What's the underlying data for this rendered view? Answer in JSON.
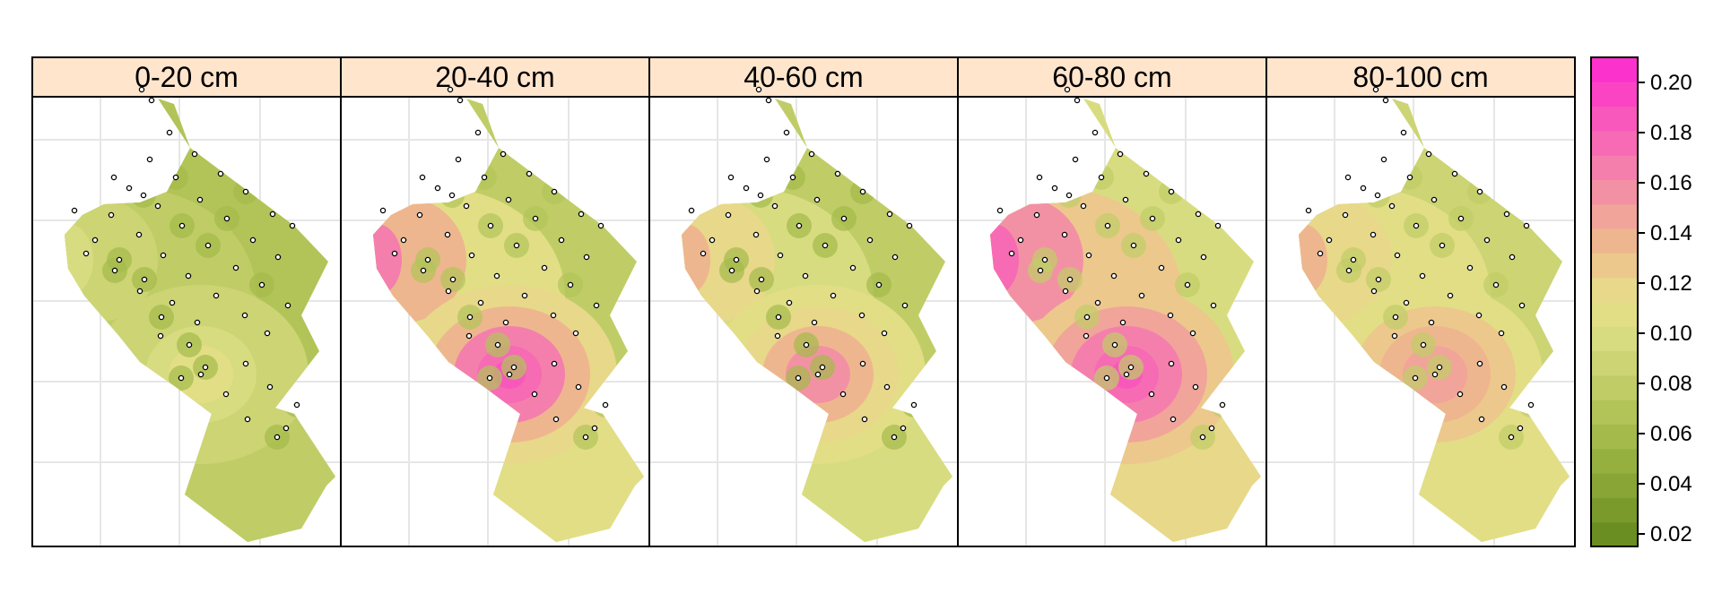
{
  "chart_data": {
    "type": "heatmap",
    "title": "",
    "xlabel": "",
    "ylabel": "",
    "panels": [
      {
        "label": "0-20 cm",
        "hotspot_level": 0.11,
        "base_level": 0.07,
        "corner_level": 0.09
      },
      {
        "label": "20-40 cm",
        "hotspot_level": 0.19,
        "base_level": 0.08,
        "corner_level": 0.14
      },
      {
        "label": "40-60 cm",
        "hotspot_level": 0.16,
        "base_level": 0.075,
        "corner_level": 0.12
      },
      {
        "label": "60-80 cm",
        "hotspot_level": 0.19,
        "base_level": 0.095,
        "corner_level": 0.16
      },
      {
        "label": "80-100 cm",
        "hotspot_level": 0.15,
        "base_level": 0.09,
        "corner_level": 0.12
      }
    ],
    "colorkey": {
      "min": 0.015,
      "max": 0.21,
      "ticks": [
        0.02,
        0.04,
        0.06,
        0.08,
        0.1,
        0.12,
        0.14,
        0.16,
        0.18,
        0.2
      ],
      "tick_labels": [
        "0.02",
        "0.04",
        "0.06",
        "0.08",
        "0.10",
        "0.12",
        "0.14",
        "0.16",
        "0.18",
        "0.20"
      ],
      "colors": [
        "#6b8e23",
        "#7a9a2c",
        "#88a536",
        "#96b040",
        "#a4ba4a",
        "#b2c458",
        "#c0cd67",
        "#ccd474",
        "#d8dc80",
        "#e2de86",
        "#e8d88a",
        "#ecc88c",
        "#eeb68e",
        "#f1a49a",
        "#f391a4",
        "#f47fac",
        "#f66bb4",
        "#f858bc",
        "#fa44c4",
        "#fc32cc"
      ]
    },
    "grid": true,
    "legend_position": "right",
    "sample_points": [
      [
        122,
        100
      ],
      [
        133,
        112
      ],
      [
        153,
        148
      ],
      [
        131,
        178
      ],
      [
        181,
        172
      ],
      [
        210,
        194
      ],
      [
        160,
        198
      ],
      [
        91,
        198
      ],
      [
        108,
        210
      ],
      [
        124,
        218
      ],
      [
        140,
        230
      ],
      [
        187,
        223
      ],
      [
        238,
        214
      ],
      [
        47,
        235
      ],
      [
        88,
        240
      ],
      [
        217,
        244
      ],
      [
        268,
        239
      ],
      [
        290,
        252
      ],
      [
        167,
        252
      ],
      [
        119,
        262
      ],
      [
        70,
        268
      ],
      [
        196,
        274
      ],
      [
        246,
        268
      ],
      [
        60,
        283
      ],
      [
        97,
        290
      ],
      [
        146,
        285
      ],
      [
        274,
        287
      ],
      [
        92,
        302
      ],
      [
        227,
        299
      ],
      [
        174,
        308
      ],
      [
        125,
        312
      ],
      [
        120,
        325
      ],
      [
        205,
        330
      ],
      [
        256,
        318
      ],
      [
        156,
        338
      ],
      [
        285,
        341
      ],
      [
        144,
        354
      ],
      [
        184,
        360
      ],
      [
        237,
        352
      ],
      [
        175,
        385
      ],
      [
        262,
        372
      ],
      [
        143,
        375
      ],
      [
        193,
        410
      ],
      [
        188,
        418
      ],
      [
        238,
        406
      ],
      [
        166,
        422
      ],
      [
        265,
        432
      ],
      [
        216,
        440
      ],
      [
        295,
        452
      ],
      [
        240,
        468
      ],
      [
        283,
        478
      ],
      [
        273,
        488
      ]
    ]
  }
}
